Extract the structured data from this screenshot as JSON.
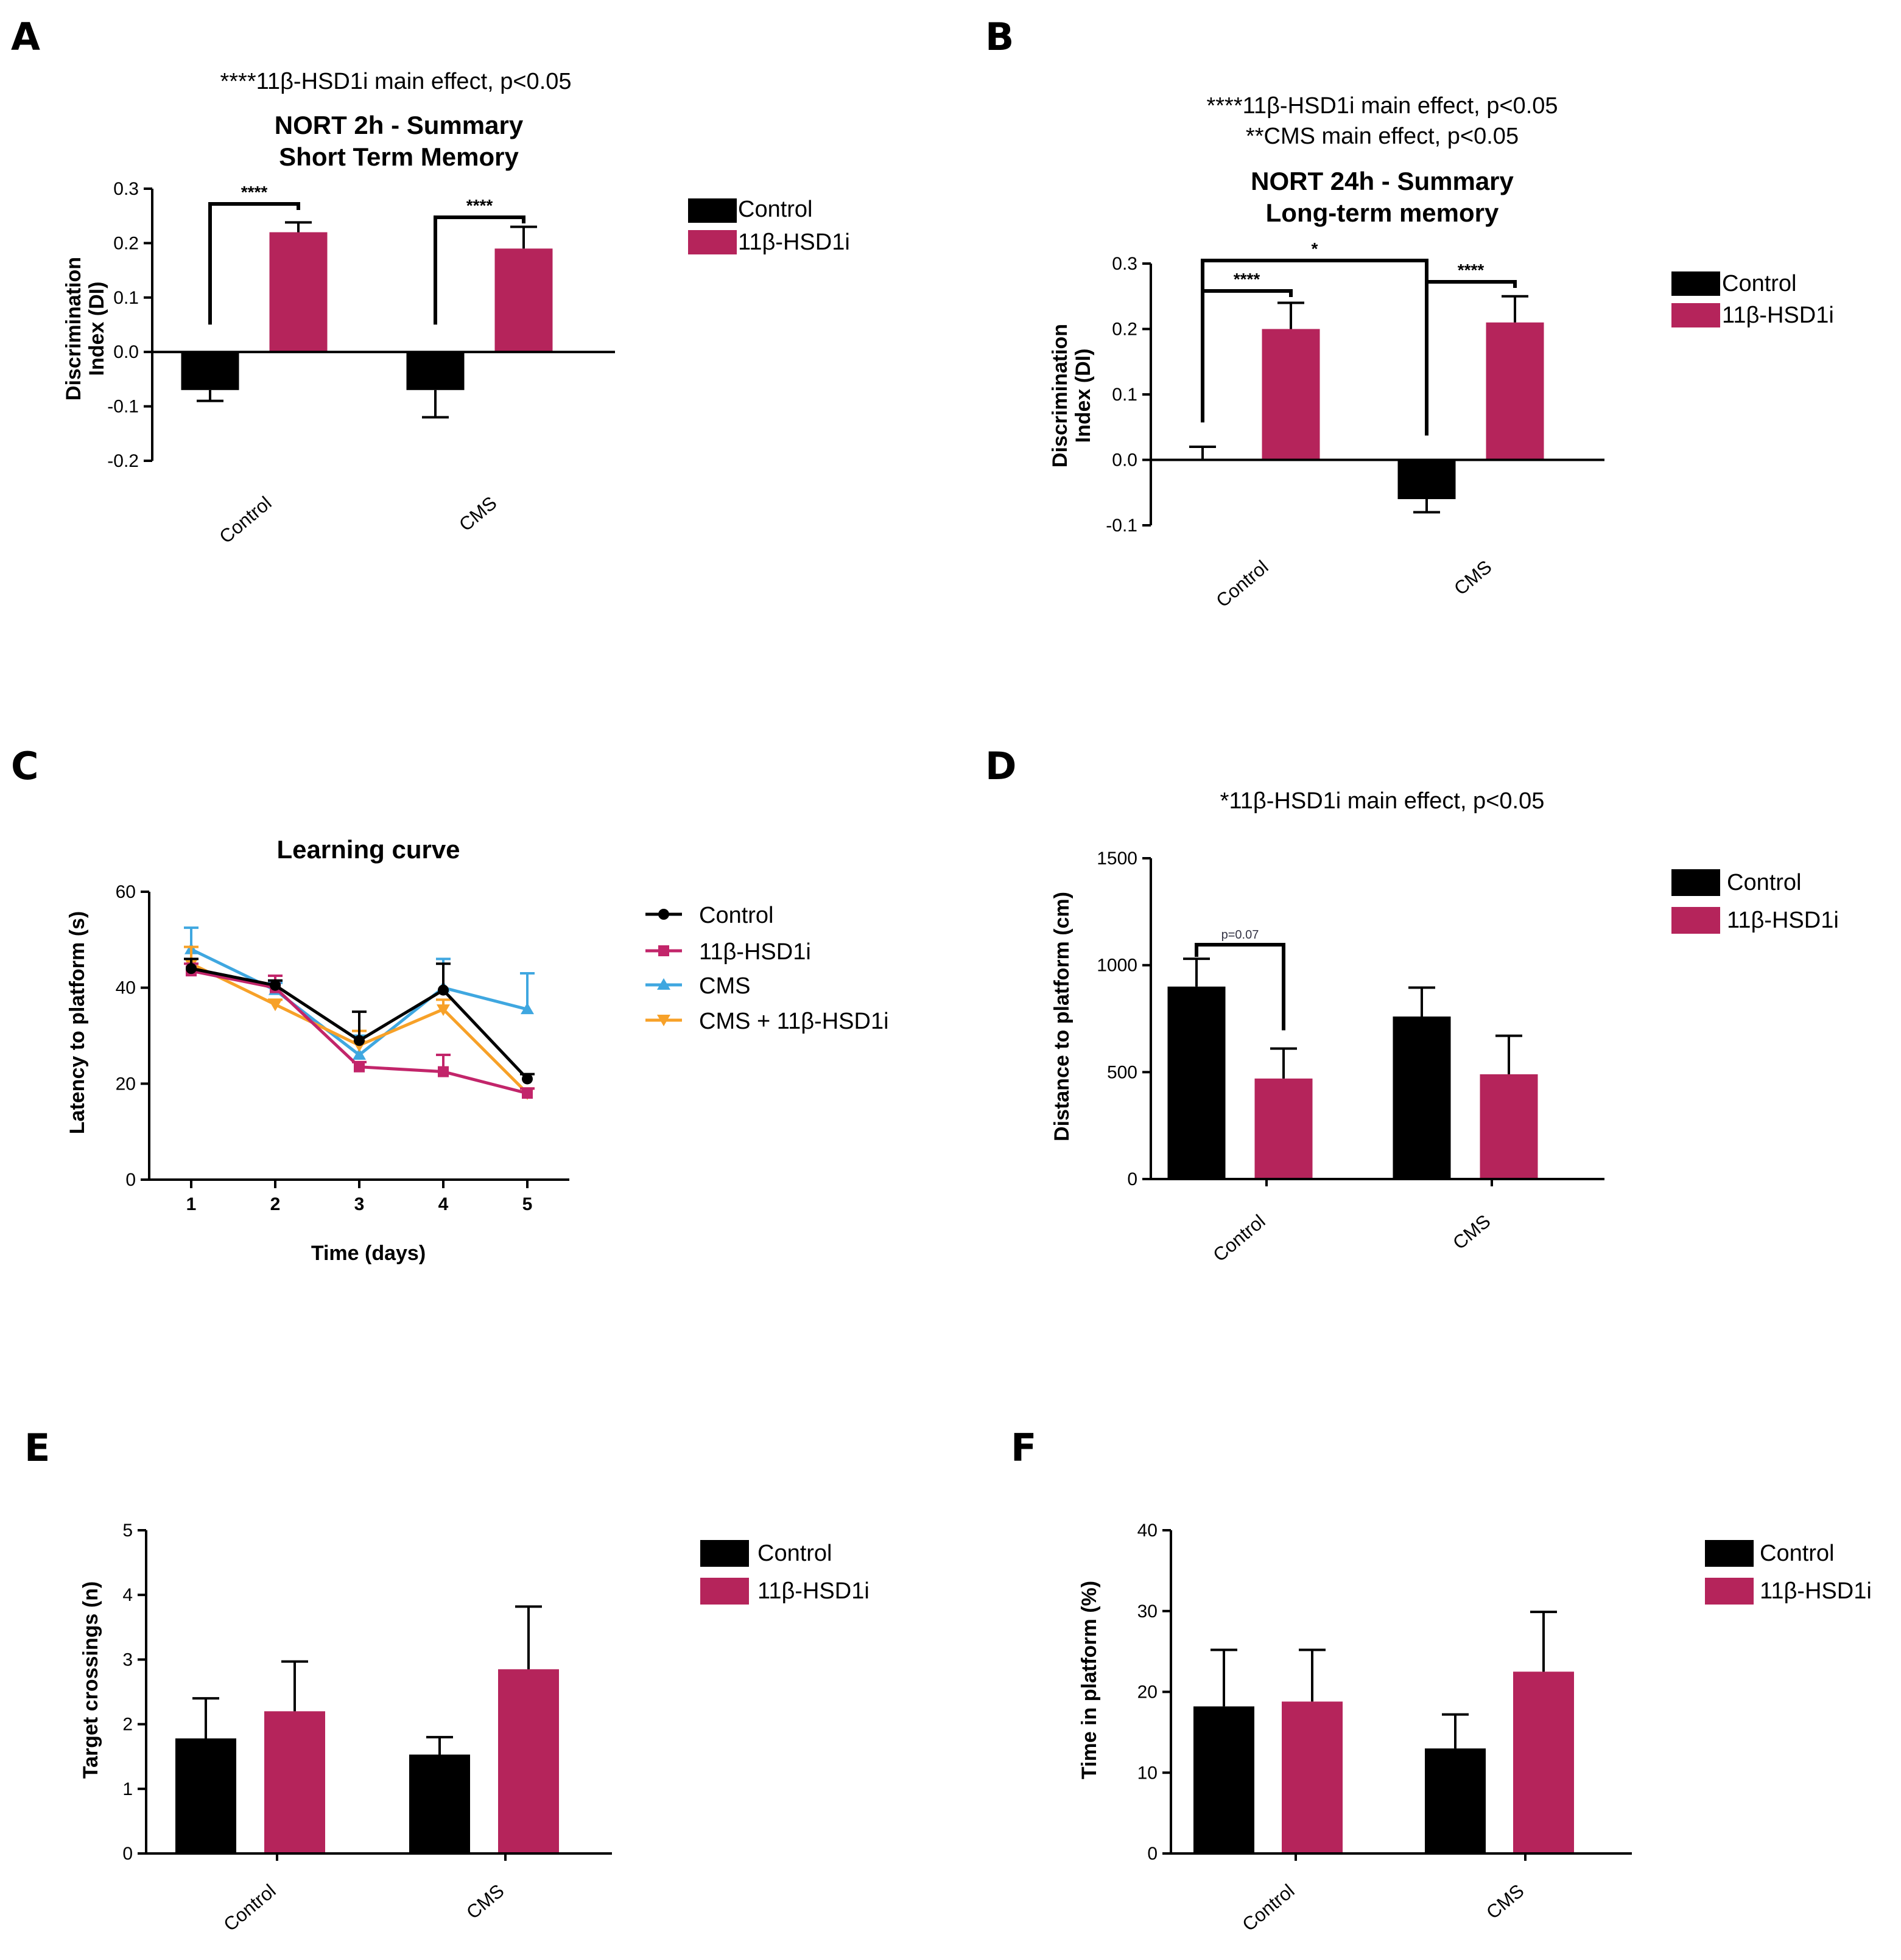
{
  "panel_labels": [
    "A",
    "B",
    "C",
    "D",
    "E",
    "F"
  ],
  "colors": {
    "control": "#000000",
    "hsd": "#b5245b",
    "cms": "#3fa7e0",
    "combo": "#f7a128"
  },
  "chart_data": [
    {
      "type": "bar",
      "panel": "A",
      "stat_lines": [
        "****11β-HSD1i main effect, p<0.05"
      ],
      "title_lines": [
        "NORT 2h - Summary",
        "Short Term Memory"
      ],
      "ylabel_lines": [
        "Discrimination",
        "Index (DI)"
      ],
      "ylim": [
        -0.2,
        0.3
      ],
      "yticks": [
        "-0.2",
        "-0.1",
        "0.0",
        "0.1",
        "0.2",
        "0.3"
      ],
      "categories": [
        "Control",
        "CMS"
      ],
      "series": [
        {
          "name": "Control",
          "values": [
            -0.07,
            -0.07
          ],
          "errors": [
            0.02,
            0.05
          ]
        },
        {
          "name": "11β-HSD1i",
          "values": [
            0.22,
            0.19
          ],
          "errors": [
            0.018,
            0.04
          ]
        }
      ],
      "significance": [
        {
          "text": "****",
          "from": [
            0,
            0
          ],
          "to": [
            0,
            1
          ]
        },
        {
          "text": "****",
          "from": [
            1,
            0
          ],
          "to": [
            1,
            1
          ]
        }
      ]
    },
    {
      "type": "bar",
      "panel": "B",
      "stat_lines": [
        "****11β-HSD1i main effect, p<0.05",
        "**CMS main effect, p<0.05"
      ],
      "title_lines": [
        "NORT 24h - Summary",
        "Long-term memory"
      ],
      "ylabel_lines": [
        "Discrimination",
        "Index (DI)"
      ],
      "ylim": [
        -0.1,
        0.3
      ],
      "yticks": [
        "-0.1",
        "0.0",
        "0.1",
        "0.2",
        "0.3"
      ],
      "categories": [
        "Control",
        "CMS"
      ],
      "series": [
        {
          "name": "Control",
          "values": [
            0.0,
            -0.06
          ],
          "errors": [
            0.02,
            0.02
          ]
        },
        {
          "name": "11β-HSD1i",
          "values": [
            0.2,
            0.21
          ],
          "errors": [
            0.04,
            0.04
          ]
        }
      ],
      "significance": [
        {
          "text": "****",
          "from": [
            0,
            0
          ],
          "to": [
            0,
            1
          ]
        },
        {
          "text": "****",
          "from": [
            1,
            0
          ],
          "to": [
            1,
            1
          ]
        },
        {
          "text": "*",
          "from": [
            0,
            0
          ],
          "to": [
            1,
            0
          ]
        }
      ]
    },
    {
      "type": "line",
      "panel": "C",
      "title": "Learning curve",
      "xlabel": "Time (days)",
      "ylabel": "Latency to platform (s)",
      "x": [
        1,
        2,
        3,
        4,
        5
      ],
      "xticks": [
        "1",
        "2",
        "3",
        "4",
        "5"
      ],
      "ylim": [
        0,
        60
      ],
      "yticks": [
        "0",
        "20",
        "40",
        "60"
      ],
      "series": [
        {
          "name": "Control",
          "marker": "circle",
          "values": [
            44,
            40.5,
            29,
            39.5,
            21
          ],
          "errors": [
            2,
            1,
            6,
            5.5,
            1
          ]
        },
        {
          "name": "11β-HSD1i",
          "marker": "square",
          "values": [
            43.5,
            40,
            23.5,
            22.5,
            18
          ],
          "errors": [
            1.5,
            2.5,
            1,
            3.5,
            1
          ]
        },
        {
          "name": "CMS",
          "marker": "triangle-up",
          "values": [
            48,
            39.5,
            26,
            40,
            35.5
          ],
          "errors": [
            4.5,
            1.5,
            4,
            6,
            7.5
          ]
        },
        {
          "name": "CMS + 11β-HSD1i",
          "marker": "triangle-down",
          "values": [
            45,
            36.5,
            28,
            35.5,
            18
          ],
          "errors": [
            3.5,
            1,
            3,
            2,
            1
          ]
        }
      ]
    },
    {
      "type": "bar",
      "panel": "D",
      "stat_lines": [
        "*11β-HSD1i main effect, p<0.05"
      ],
      "ylabel_lines": [
        "Distance to platform (cm)"
      ],
      "ylim": [
        0,
        1500
      ],
      "yticks": [
        "0",
        "500",
        "1000",
        "1500"
      ],
      "categories": [
        "Control",
        "CMS"
      ],
      "series": [
        {
          "name": "Control",
          "values": [
            900,
            760
          ],
          "errors": [
            130,
            135
          ]
        },
        {
          "name": "11β-HSD1i",
          "values": [
            470,
            490
          ],
          "errors": [
            140,
            180
          ]
        }
      ],
      "significance": [
        {
          "text": "p=0.07",
          "from": [
            0,
            0
          ],
          "to": [
            0,
            1
          ]
        }
      ]
    },
    {
      "type": "bar",
      "panel": "E",
      "ylabel_lines": [
        "Target crossings (n)"
      ],
      "ylim": [
        0,
        5
      ],
      "yticks": [
        "0",
        "1",
        "2",
        "3",
        "4",
        "5"
      ],
      "categories": [
        "Control",
        "CMS"
      ],
      "series": [
        {
          "name": "Control",
          "values": [
            1.78,
            1.53
          ],
          "errors": [
            0.62,
            0.27
          ]
        },
        {
          "name": "11β-HSD1i",
          "values": [
            2.2,
            2.85
          ],
          "errors": [
            0.77,
            0.97
          ]
        }
      ]
    },
    {
      "type": "bar",
      "panel": "F",
      "ylabel_lines": [
        "Time in platform (%)"
      ],
      "ylim": [
        0,
        40
      ],
      "yticks": [
        "0",
        "10",
        "20",
        "30",
        "40"
      ],
      "categories": [
        "Control",
        "CMS"
      ],
      "series": [
        {
          "name": "Control",
          "values": [
            18.2,
            13.0
          ],
          "errors": [
            7.0,
            4.2
          ]
        },
        {
          "name": "11β-HSD1i",
          "values": [
            18.8,
            22.5
          ],
          "errors": [
            6.4,
            7.4
          ]
        }
      ]
    }
  ]
}
